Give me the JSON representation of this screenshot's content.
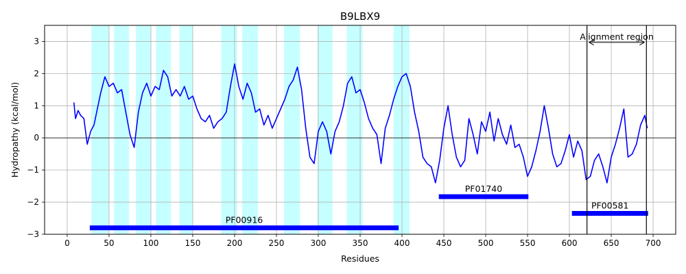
{
  "chart_data": {
    "type": "line",
    "title": "B9LBX9",
    "xlabel": "Residues",
    "ylabel": "Hydropathy (kcal/mol)",
    "xlim": [
      -27,
      727
    ],
    "ylim": [
      -3,
      3.5
    ],
    "xticks": [
      0,
      50,
      100,
      150,
      200,
      250,
      300,
      350,
      400,
      450,
      500,
      550,
      600,
      650,
      700
    ],
    "yticks": [
      -3,
      -2,
      -1,
      0,
      1,
      2,
      3
    ],
    "grid": true,
    "colors": {
      "line": "#0000ff",
      "domain_bar": "#0000ff",
      "tm_region": "#c6ffff",
      "grid": "#b0b0b0",
      "zero_line": "#000000"
    },
    "series": [
      {
        "x": [
          8,
          10,
          13,
          16,
          20,
          24,
          28,
          32,
          36,
          40,
          45,
          50,
          55,
          60,
          65,
          70,
          75,
          80,
          85,
          90,
          95,
          100,
          105,
          110,
          115,
          120,
          125,
          130,
          135,
          140,
          145,
          150,
          155,
          160,
          165,
          170,
          175,
          180,
          185,
          190,
          195,
          200,
          205,
          210,
          215,
          220,
          225,
          230,
          235,
          240,
          245,
          250,
          255,
          260,
          265,
          270,
          275,
          280,
          285,
          290,
          295,
          300,
          305,
          310,
          315,
          320,
          325,
          330,
          335,
          340,
          345,
          350,
          355,
          360,
          365,
          370,
          375,
          380,
          385,
          390,
          395,
          400,
          405,
          410,
          415,
          420,
          425,
          430,
          435,
          440,
          445,
          450,
          455,
          460,
          465,
          470,
          475,
          480,
          485,
          490,
          495,
          500,
          505,
          510,
          515,
          520,
          525,
          530,
          535,
          540,
          545,
          550,
          555,
          560,
          565,
          570,
          575,
          580,
          585,
          590,
          595,
          600,
          605,
          610,
          615,
          620,
          625,
          630,
          635,
          640,
          645,
          650,
          655,
          660,
          665,
          670,
          675,
          680,
          685,
          690,
          693
        ],
        "y": [
          1.1,
          0.6,
          0.85,
          0.7,
          0.6,
          -0.2,
          0.2,
          0.4,
          0.9,
          1.4,
          1.9,
          1.6,
          1.7,
          1.4,
          1.5,
          0.8,
          0.1,
          -0.3,
          0.8,
          1.4,
          1.7,
          1.3,
          1.6,
          1.5,
          2.1,
          1.9,
          1.3,
          1.5,
          1.3,
          1.6,
          1.2,
          1.3,
          0.9,
          0.6,
          0.5,
          0.7,
          0.3,
          0.5,
          0.6,
          0.8,
          1.6,
          2.3,
          1.6,
          1.2,
          1.7,
          1.4,
          0.8,
          0.9,
          0.4,
          0.7,
          0.3,
          0.6,
          0.9,
          1.2,
          1.6,
          1.8,
          2.2,
          1.5,
          0.3,
          -0.6,
          -0.8,
          0.2,
          0.5,
          0.2,
          -0.5,
          0.2,
          0.5,
          1.0,
          1.7,
          1.9,
          1.4,
          1.5,
          1.1,
          0.6,
          0.3,
          0.1,
          -0.8,
          0.3,
          0.7,
          1.2,
          1.6,
          1.9,
          2.0,
          1.6,
          0.8,
          0.2,
          -0.6,
          -0.8,
          -0.9,
          -1.4,
          -0.7,
          0.3,
          1.0,
          0.1,
          -0.6,
          -0.9,
          -0.7,
          0.6,
          0.1,
          -0.5,
          0.5,
          0.2,
          0.8,
          -0.1,
          0.6,
          0.1,
          -0.2,
          0.4,
          -0.3,
          -0.2,
          -0.6,
          -1.2,
          -0.9,
          -0.4,
          0.2,
          1.0,
          0.3,
          -0.5,
          -0.9,
          -0.8,
          -0.4,
          0.1,
          -0.6,
          -0.1,
          -0.4,
          -1.3,
          -1.2,
          -0.7,
          -0.5,
          -0.9,
          -1.4,
          -0.6,
          -0.2,
          0.3,
          0.9,
          -0.6,
          -0.5,
          -0.2,
          0.4,
          0.7,
          0.3
        ]
      }
    ],
    "tm_regions": [
      [
        29,
        50
      ],
      [
        56,
        74
      ],
      [
        82,
        100
      ],
      [
        106,
        124
      ],
      [
        134,
        150
      ],
      [
        184,
        203
      ],
      [
        209,
        228
      ],
      [
        259,
        278
      ],
      [
        299,
        317
      ],
      [
        334,
        353
      ],
      [
        390,
        409
      ]
    ],
    "domains": [
      {
        "label": "PF00916",
        "start": 27,
        "end": 396,
        "y": -2.8
      },
      {
        "label": "PF01740",
        "start": 444,
        "end": 551,
        "y": -1.83
      },
      {
        "label": "PF00581",
        "start": 603,
        "end": 694,
        "y": -2.35
      }
    ],
    "alignment": {
      "label": "Alignment region",
      "start": 621,
      "end": 692,
      "arrow_y": 2.97
    }
  }
}
